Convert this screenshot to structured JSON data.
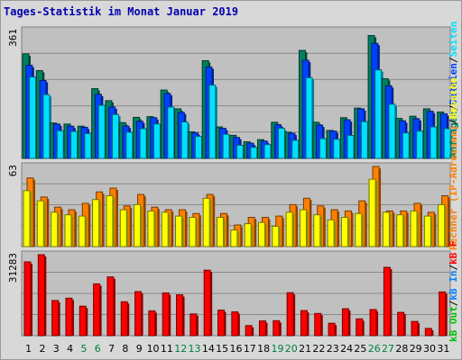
{
  "title": "Tages-Statistik im Monat Januar 2019",
  "colors": {
    "background": "#d8d8d8",
    "plot_background": "#c0c0c0",
    "title": "#0000b0",
    "weekend_day": "#008040",
    "weekday": "#000000",
    "hits": "#008060",
    "files": "#0040ff",
    "pages": "#00e0ff",
    "visits": "#ff8000",
    "sites": "#ffff00",
    "kbytes": "#ff0000",
    "kb_in": "#0080ff",
    "kb_out": "#00c000"
  },
  "chart_data": [
    {
      "type": "bar",
      "panel": "hits-files-pages",
      "ytick": "361",
      "ylim": [
        0,
        361
      ],
      "categories": [
        "1",
        "2",
        "3",
        "4",
        "5",
        "6",
        "7",
        "8",
        "9",
        "10",
        "11",
        "12",
        "13",
        "14",
        "15",
        "16",
        "17",
        "18",
        "19",
        "20",
        "21",
        "22",
        "23",
        "24",
        "25",
        "26",
        "27",
        "28",
        "29",
        "30",
        "31"
      ],
      "weekend_days": [
        "5",
        "6",
        "12",
        "13",
        "19",
        "20",
        "26",
        "27"
      ],
      "series": [
        {
          "name": "Anfragen",
          "values": [
            295,
            248,
            100,
            97,
            91,
            197,
            163,
            101,
            116,
            118,
            193,
            140,
            75,
            276,
            89,
            65,
            47,
            53,
            102,
            74,
            305,
            102,
            79,
            115,
            142,
            347,
            225,
            113,
            119,
            140,
            131
          ]
        },
        {
          "name": "Dateien",
          "values": [
            263,
            220,
            97,
            91,
            88,
            181,
            145,
            91,
            105,
            115,
            183,
            130,
            72,
            258,
            85,
            59,
            43,
            49,
            95,
            71,
            277,
            94,
            77,
            109,
            140,
            325,
            205,
            106,
            112,
            133,
            126
          ]
        },
        {
          "name": "Seiten",
          "values": [
            230,
            180,
            78,
            76,
            70,
            150,
            124,
            74,
            84,
            97,
            145,
            103,
            62,
            207,
            68,
            37,
            31,
            39,
            85,
            51,
            228,
            56,
            54,
            65,
            104,
            250,
            153,
            72,
            77,
            89,
            84
          ]
        }
      ]
    },
    {
      "type": "bar",
      "panel": "visits-sites",
      "ytick": "63",
      "ylim": [
        0,
        63
      ],
      "categories": [
        "1",
        "2",
        "3",
        "4",
        "5",
        "6",
        "7",
        "8",
        "9",
        "10",
        "11",
        "12",
        "13",
        "14",
        "15",
        "16",
        "17",
        "18",
        "19",
        "20",
        "21",
        "22",
        "23",
        "24",
        "25",
        "26",
        "27",
        "28",
        "29",
        "30",
        "31"
      ],
      "series": [
        {
          "name": "Besuche",
          "values": [
            54,
            39,
            31,
            29,
            34,
            43,
            46,
            32,
            41,
            31,
            29,
            29,
            26,
            41,
            26,
            17,
            23,
            23,
            24,
            33,
            38,
            32,
            29,
            28,
            36,
            63,
            28,
            28,
            34,
            27,
            40
          ]
        },
        {
          "name": "Rechner (IP-Adressen)",
          "values": [
            44,
            36,
            27,
            25,
            24,
            37,
            40,
            29,
            33,
            28,
            27,
            24,
            23,
            38,
            23,
            13,
            18,
            19,
            16,
            27,
            29,
            25,
            21,
            23,
            26,
            53,
            27,
            25,
            28,
            24,
            33
          ]
        }
      ]
    },
    {
      "type": "bar",
      "panel": "kbytes",
      "ytick": "31283",
      "ylim": [
        0,
        31283
      ],
      "categories": [
        "1",
        "2",
        "3",
        "4",
        "5",
        "6",
        "7",
        "8",
        "9",
        "10",
        "11",
        "12",
        "13",
        "14",
        "15",
        "16",
        "17",
        "18",
        "19",
        "20",
        "21",
        "22",
        "23",
        "24",
        "25",
        "26",
        "27",
        "28",
        "29",
        "30",
        "31"
      ],
      "series": [
        {
          "name": "kB F",
          "values": [
            28500,
            31283,
            13600,
            14500,
            11400,
            20000,
            22700,
            13100,
            17000,
            9600,
            16500,
            15800,
            8400,
            25300,
            9900,
            9200,
            3900,
            5700,
            5800,
            16600,
            9700,
            8600,
            4800,
            10400,
            6500,
            10100,
            26400,
            9000,
            5500,
            2800,
            16900
          ]
        }
      ]
    }
  ],
  "right_legend": {
    "panel1": {
      "anfragen": "Anfragen",
      "sep1": "/",
      "dateien": "Dateien",
      "sep2": "/",
      "seiten": "Seiten"
    },
    "panel2": {
      "rechner": "Rechner (IP-Adressen)",
      "sep": "/",
      "besuche": "Besuche"
    },
    "panel3": {
      "kb_out": "kB Out",
      "sep1": "/",
      "kb_in": "kB In",
      "sep2": "/",
      "kb_f": "kB F"
    }
  }
}
